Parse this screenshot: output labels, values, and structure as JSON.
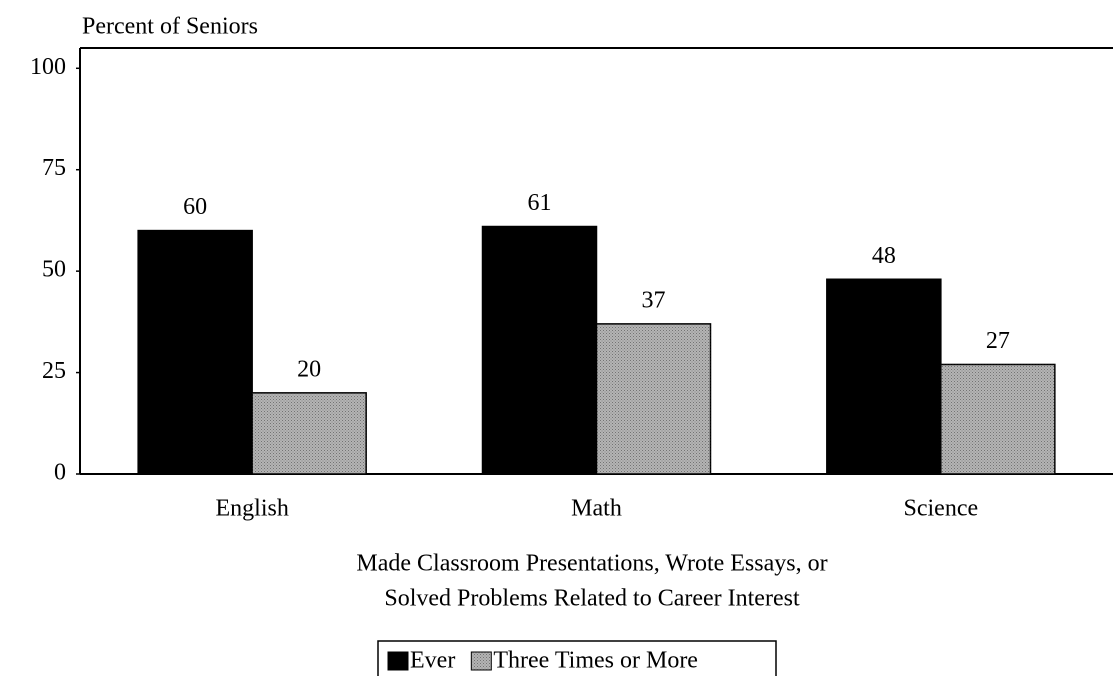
{
  "chart_data": {
    "type": "bar",
    "ylabel": "Percent of Seniors",
    "xlabel": [
      "Made Classroom Presentations, Wrote Essays, or",
      "Solved Problems Related to Career Interest"
    ],
    "categories": [
      "English",
      "Math",
      "Science"
    ],
    "series": [
      {
        "name": "Ever",
        "color": "#000000",
        "values": [
          60,
          61,
          48
        ]
      },
      {
        "name": "Three Times or More",
        "color": "#b4b4b4",
        "values": [
          20,
          37,
          27
        ]
      }
    ],
    "ylim": [
      0,
      105
    ],
    "yticks": [
      0,
      25,
      50,
      75,
      100
    ],
    "grid": false
  }
}
